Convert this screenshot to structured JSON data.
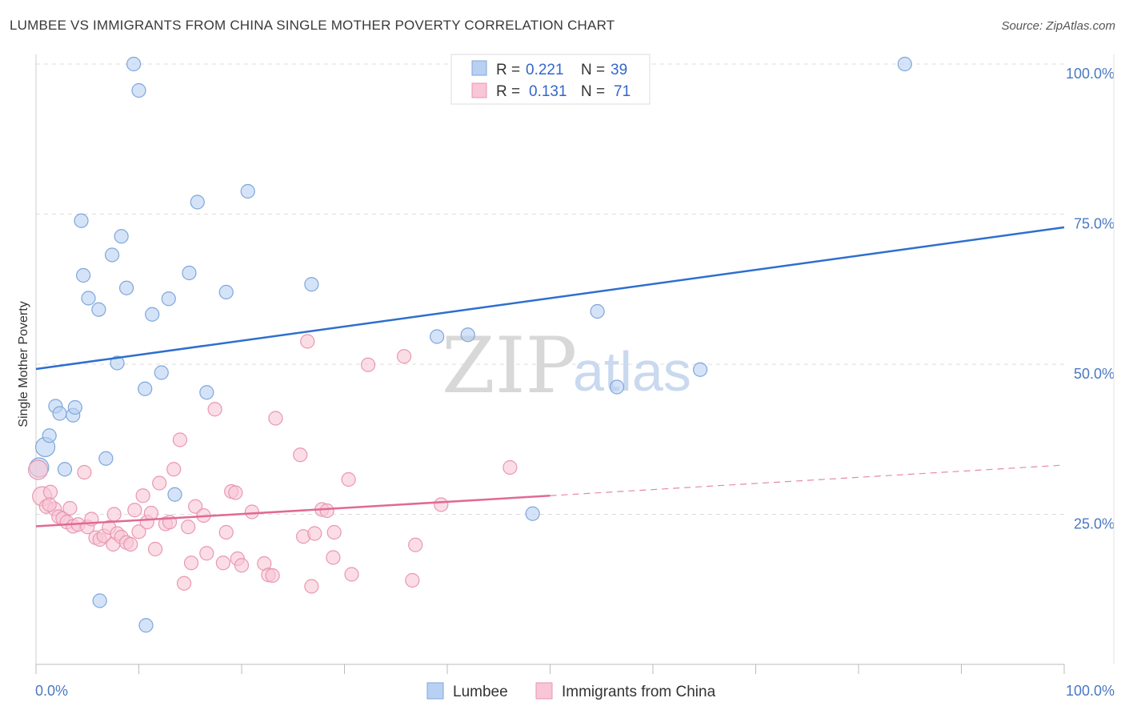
{
  "title": "LUMBEE VS IMMIGRANTS FROM CHINA SINGLE MOTHER POVERTY CORRELATION CHART",
  "source": "Source: ZipAtlas.com",
  "colors": {
    "lumbee_fill": "#b8d1f2",
    "lumbee_stroke": "#7ea6dc",
    "lumbee_line": "#2e6fcf",
    "china_fill": "#f8c6d5",
    "china_stroke": "#e897b2",
    "china_line": "#e06a94",
    "grid": "#dddddd",
    "tick_text": "#4a78c2"
  },
  "legend": {
    "lumbee": {
      "r_label": "R =",
      "r_value": "0.221",
      "n_label": "N =",
      "n_value": "39"
    },
    "china": {
      "r_label": "R =",
      "r_value": "0.131",
      "n_label": "N =",
      "n_value": "71"
    }
  },
  "watermark": {
    "zip": "ZIP",
    "atlas": "atlas"
  },
  "chart_data": {
    "type": "scatter",
    "title": "LUMBEE VS IMMIGRANTS FROM CHINA SINGLE MOTHER POVERTY CORRELATION CHART",
    "xlabel": "",
    "ylabel": "Single Mother Poverty",
    "xlim": [
      0,
      100
    ],
    "ylim": [
      0,
      100
    ],
    "x_tick_labels": [
      "0.0%",
      "100.0%"
    ],
    "y_ticks": [
      25,
      50,
      75,
      100
    ],
    "y_tick_labels": [
      "25.0%",
      "50.0%",
      "75.0%",
      "100.0%"
    ],
    "grid": true,
    "legend_position": "top-center",
    "series": [
      {
        "name": "Lumbee",
        "r": 0.221,
        "n": 39,
        "trend": {
          "x": [
            0,
            100
          ],
          "y": [
            49.2,
            72.8
          ],
          "dashed_from": null
        },
        "points": [
          [
            0.3,
            32.8
          ],
          [
            0.9,
            36.2
          ],
          [
            1.3,
            38.1
          ],
          [
            1.9,
            43.0
          ],
          [
            2.3,
            41.8
          ],
          [
            2.8,
            32.5
          ],
          [
            3.6,
            41.5
          ],
          [
            3.8,
            42.8
          ],
          [
            4.4,
            73.9
          ],
          [
            4.6,
            64.8
          ],
          [
            5.1,
            61.0
          ],
          [
            6.1,
            59.1
          ],
          [
            6.2,
            10.6
          ],
          [
            6.8,
            34.3
          ],
          [
            7.4,
            68.2
          ],
          [
            7.9,
            50.2
          ],
          [
            8.3,
            71.3
          ],
          [
            8.8,
            62.7
          ],
          [
            9.5,
            100.0
          ],
          [
            10.0,
            95.6
          ],
          [
            10.6,
            45.9
          ],
          [
            10.7,
            6.5
          ],
          [
            11.3,
            58.3
          ],
          [
            12.2,
            48.6
          ],
          [
            12.9,
            60.9
          ],
          [
            13.5,
            28.3
          ],
          [
            14.9,
            65.2
          ],
          [
            15.7,
            77.0
          ],
          [
            16.6,
            45.3
          ],
          [
            18.5,
            62.0
          ],
          [
            20.6,
            78.8
          ],
          [
            26.8,
            63.3
          ],
          [
            39.0,
            54.6
          ],
          [
            42.0,
            54.9
          ],
          [
            48.3,
            25.1
          ],
          [
            54.6,
            58.8
          ],
          [
            56.5,
            46.2
          ],
          [
            64.6,
            49.1
          ],
          [
            84.5,
            100.0
          ]
        ]
      },
      {
        "name": "Immigrants from China",
        "r": 0.131,
        "n": 71,
        "trend": {
          "x": [
            0,
            100
          ],
          "y": [
            23.0,
            33.2
          ],
          "dashed_from": 50
        },
        "points": [
          [
            0.2,
            32.4
          ],
          [
            0.6,
            28.0
          ],
          [
            1.0,
            26.3
          ],
          [
            1.4,
            28.7
          ],
          [
            1.8,
            25.9
          ],
          [
            2.2,
            24.6
          ],
          [
            2.6,
            24.3
          ],
          [
            3.0,
            23.7
          ],
          [
            3.3,
            26.0
          ],
          [
            3.6,
            23.0
          ],
          [
            4.1,
            23.3
          ],
          [
            4.7,
            32.0
          ],
          [
            5.0,
            22.9
          ],
          [
            5.4,
            24.2
          ],
          [
            5.8,
            21.1
          ],
          [
            6.2,
            20.8
          ],
          [
            6.6,
            21.4
          ],
          [
            7.1,
            22.8
          ],
          [
            7.5,
            20.0
          ],
          [
            7.9,
            21.8
          ],
          [
            8.3,
            21.2
          ],
          [
            8.8,
            20.3
          ],
          [
            9.2,
            20.0
          ],
          [
            9.6,
            25.7
          ],
          [
            10.0,
            22.1
          ],
          [
            10.4,
            28.1
          ],
          [
            10.8,
            23.7
          ],
          [
            11.2,
            25.2
          ],
          [
            11.6,
            19.2
          ],
          [
            12.0,
            30.2
          ],
          [
            12.6,
            23.4
          ],
          [
            13.0,
            23.7
          ],
          [
            13.4,
            32.5
          ],
          [
            14.0,
            37.4
          ],
          [
            14.4,
            13.5
          ],
          [
            14.8,
            22.9
          ],
          [
            15.1,
            16.9
          ],
          [
            15.5,
            26.3
          ],
          [
            16.3,
            24.8
          ],
          [
            16.6,
            18.5
          ],
          [
            17.4,
            42.5
          ],
          [
            18.2,
            16.9
          ],
          [
            18.5,
            22.0
          ],
          [
            19.0,
            28.8
          ],
          [
            19.4,
            28.6
          ],
          [
            19.6,
            17.6
          ],
          [
            20.0,
            16.5
          ],
          [
            21.0,
            25.4
          ],
          [
            22.2,
            16.8
          ],
          [
            22.6,
            14.9
          ],
          [
            23.3,
            41.0
          ],
          [
            23.0,
            14.8
          ],
          [
            25.7,
            34.9
          ],
          [
            26.4,
            53.8
          ],
          [
            26.0,
            21.3
          ],
          [
            26.8,
            13.0
          ],
          [
            27.1,
            21.8
          ],
          [
            27.8,
            25.8
          ],
          [
            28.3,
            25.6
          ],
          [
            28.9,
            17.8
          ],
          [
            29.0,
            22.0
          ],
          [
            30.4,
            30.8
          ],
          [
            30.7,
            15.0
          ],
          [
            32.3,
            49.9
          ],
          [
            35.8,
            51.3
          ],
          [
            36.6,
            14.0
          ],
          [
            36.9,
            19.9
          ],
          [
            39.4,
            26.6
          ],
          [
            46.1,
            32.8
          ],
          [
            1.3,
            26.6
          ],
          [
            7.6,
            25.0
          ]
        ]
      }
    ]
  }
}
